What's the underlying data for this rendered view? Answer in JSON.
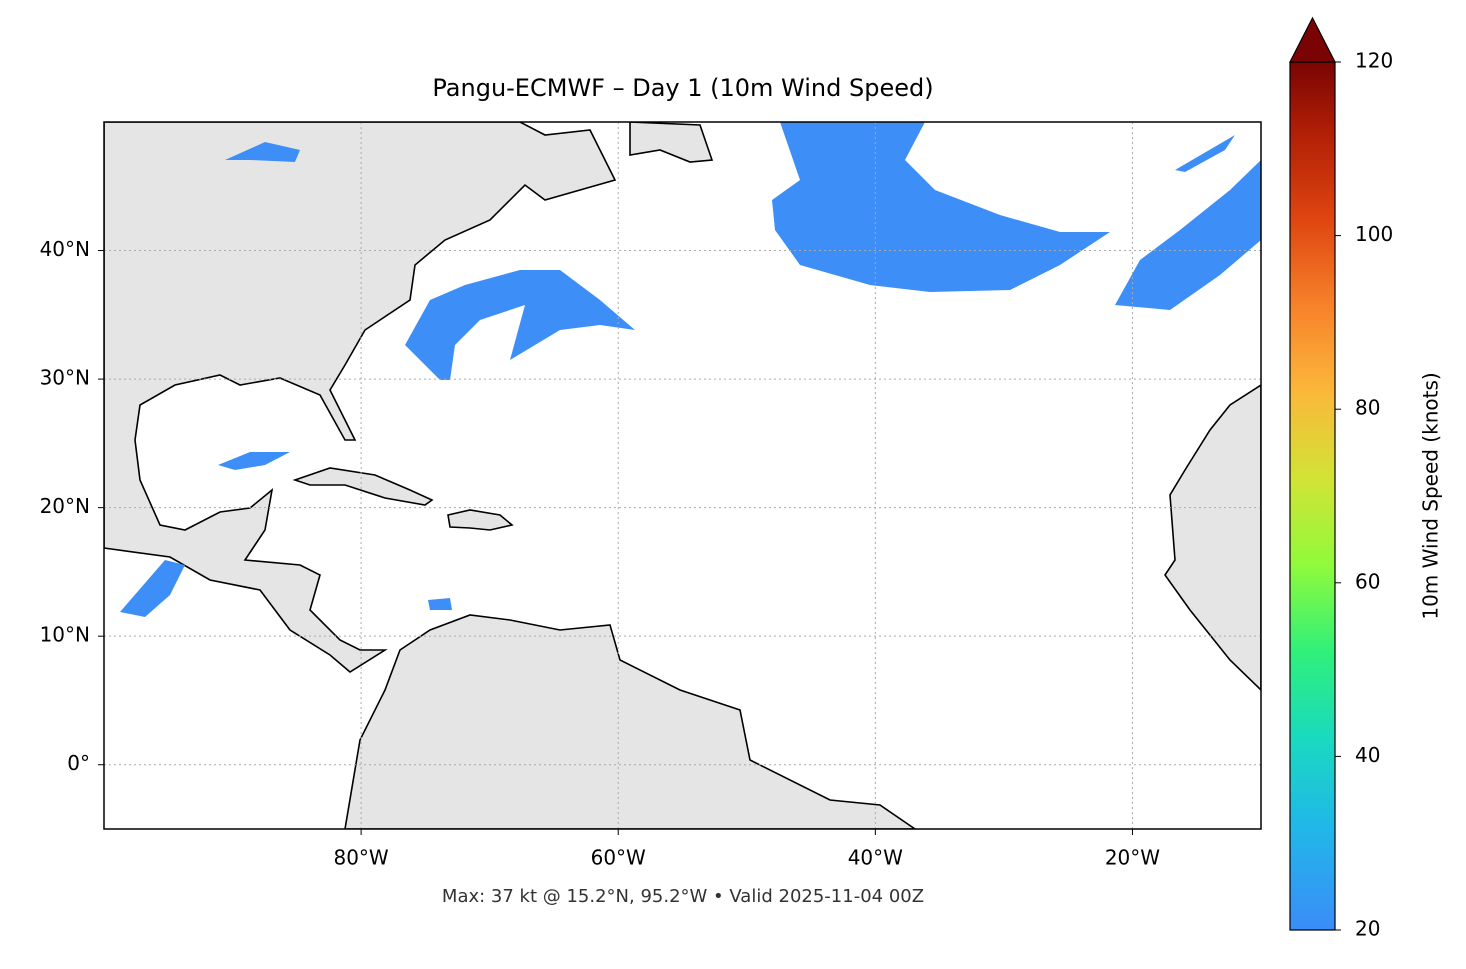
{
  "chart_data": {
    "type": "map",
    "title": "Pangu-ECMWF – Day 1 (10m Wind Speed)",
    "xlim": [
      -100,
      -10
    ],
    "ylim": [
      -5,
      50
    ],
    "xticks": [
      {
        "value": -80,
        "label": "80°W"
      },
      {
        "value": -60,
        "label": "60°W"
      },
      {
        "value": -40,
        "label": "40°W"
      },
      {
        "value": -20,
        "label": "20°W"
      }
    ],
    "yticks": [
      {
        "value": 0,
        "label": "0°"
      },
      {
        "value": 10,
        "label": "10°N"
      },
      {
        "value": 20,
        "label": "20°N"
      },
      {
        "value": 30,
        "label": "30°N"
      },
      {
        "value": 40,
        "label": "40°N"
      }
    ],
    "grid": true,
    "colorbar": {
      "label": "10m Wind Speed (knots)",
      "lim": [
        20,
        120
      ],
      "ticks": [
        20,
        40,
        60,
        80,
        100,
        120
      ],
      "extend": "max"
    },
    "footnote": "Max: 37 kt @ 15.2°N, 95.2°W • Valid 2025-11-04 00Z"
  }
}
